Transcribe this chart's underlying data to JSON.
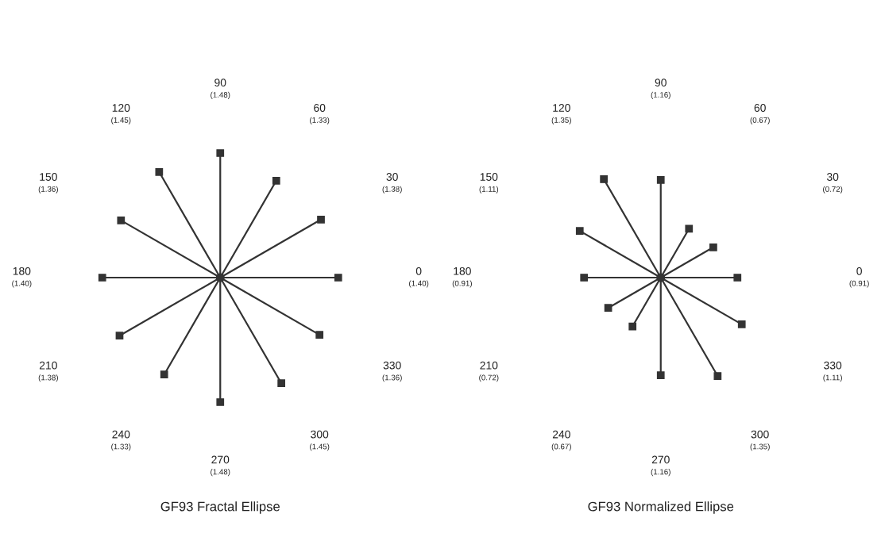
{
  "chart_data": [
    {
      "type": "other",
      "title": "GF93 Fractal Ellipse",
      "categories": [
        "0",
        "30",
        "60",
        "90",
        "120",
        "150",
        "180",
        "210",
        "240",
        "270",
        "300",
        "330"
      ],
      "values": [
        1.4,
        1.38,
        1.33,
        1.48,
        1.45,
        1.36,
        1.4,
        1.38,
        1.33,
        1.48,
        1.45,
        1.36
      ],
      "value_labels": [
        "(1.40)",
        "(1.38)",
        "(1.33)",
        "(1.48)",
        "(1.45)",
        "(1.36)",
        "(1.40)",
        "(1.38)",
        "(1.33)",
        "(1.48)",
        "(1.45)",
        "(1.36)"
      ],
      "color": "#333333"
    },
    {
      "type": "other",
      "title": "GF93 Normalized Ellipse",
      "categories": [
        "0",
        "30",
        "60",
        "90",
        "120",
        "150",
        "180",
        "210",
        "240",
        "270",
        "300",
        "330"
      ],
      "values": [
        0.91,
        0.72,
        0.67,
        1.16,
        1.35,
        1.11,
        0.91,
        0.72,
        0.67,
        1.16,
        1.35,
        1.11
      ],
      "value_labels": [
        "(0.91)",
        "(0.72)",
        "(0.67)",
        "(1.16)",
        "(1.35)",
        "(1.11)",
        "(0.91)",
        "(0.72)",
        "(0.67)",
        "(1.16)",
        "(1.35)",
        "(1.11)"
      ],
      "color": "#333333"
    }
  ]
}
